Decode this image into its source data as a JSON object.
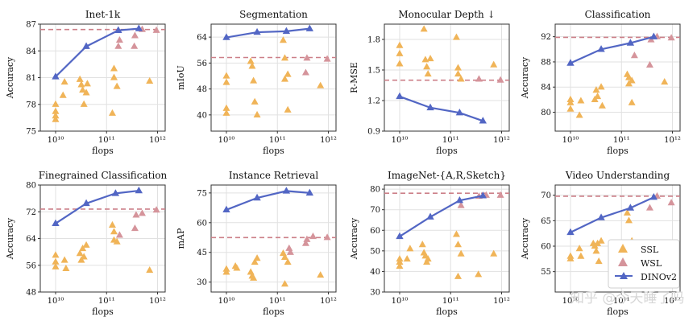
{
  "colors": {
    "ssl": "#f0b458",
    "wsl": "#d5949b",
    "dinov2": "#5266c4",
    "baseline": "#cc7f88",
    "grid": "#e1e1e1"
  },
  "legend": {
    "items": [
      {
        "label": "SSL",
        "color": "#f0b458",
        "kind": "triangle"
      },
      {
        "label": "WSL",
        "color": "#d5949b",
        "kind": "triangle"
      },
      {
        "label": "DINOv2",
        "color": "#5266c4",
        "kind": "line"
      }
    ]
  },
  "watermark": "知乎 @今天睡了吗",
  "chart_data": [
    {
      "type": "scatter",
      "title": "Inet-1k",
      "xlabel": "flops",
      "ylabel": "Accuracy",
      "xscale": "log",
      "xlim_log10": [
        9.7,
        12.15
      ],
      "ylim": [
        75,
        87
      ],
      "yticks": [
        75,
        78,
        81,
        84,
        87
      ],
      "xtick_labels": [
        "10^10",
        "10^11",
        "10^12"
      ],
      "baseline": 86.4,
      "ssl_points": [
        [
          10000000000.0,
          78.0
        ],
        [
          10000000000.0,
          77.2
        ],
        [
          10000000000.0,
          76.7
        ],
        [
          10000000000.0,
          76.3
        ],
        [
          14000000000.0,
          79.0
        ],
        [
          15000000000.0,
          80.5
        ],
        [
          30000000000.0,
          80.8
        ],
        [
          32000000000.0,
          80.2
        ],
        [
          34000000000.0,
          79.6
        ],
        [
          36000000000.0,
          78.0
        ],
        [
          40000000000.0,
          79.3
        ],
        [
          42000000000.0,
          80.3
        ],
        [
          130000000000.0,
          77.0
        ],
        [
          140000000000.0,
          82.0
        ],
        [
          140000000000.0,
          81.0
        ],
        [
          160000000000.0,
          80.0
        ],
        [
          700000000000.0,
          80.6
        ]
      ],
      "wsl_points": [
        [
          170000000000.0,
          84.5
        ],
        [
          180000000000.0,
          85.2
        ],
        [
          350000000000.0,
          84.5
        ],
        [
          360000000000.0,
          85.7
        ],
        [
          500000000000.0,
          86.4
        ],
        [
          950000000000.0,
          86.3
        ]
      ],
      "dinov2": [
        [
          10000000000.0,
          81.1
        ],
        [
          40000000000.0,
          84.5
        ],
        [
          170000000000.0,
          86.3
        ],
        [
          430000000000.0,
          86.5
        ]
      ]
    },
    {
      "type": "scatter",
      "title": "Segmentation",
      "xlabel": "flops",
      "ylabel": "mIoU",
      "xscale": "log",
      "xlim_log10": [
        9.7,
        12.15
      ],
      "ylim": [
        35,
        68
      ],
      "yticks": [
        40,
        48,
        56,
        64
      ],
      "xtick_labels": [
        "10^10",
        "10^11",
        "10^12"
      ],
      "baseline": 57.7,
      "ssl_points": [
        [
          10000000000.0,
          52.0
        ],
        [
          10000000000.0,
          50.0
        ],
        [
          10000000000.0,
          42.0
        ],
        [
          10000000000.0,
          40.5
        ],
        [
          30000000000.0,
          56.5
        ],
        [
          32000000000.0,
          55.0
        ],
        [
          34000000000.0,
          50.5
        ],
        [
          36000000000.0,
          44.0
        ],
        [
          40000000000.0,
          40.0
        ],
        [
          130000000000.0,
          63.0
        ],
        [
          140000000000.0,
          57.5
        ],
        [
          140000000000.0,
          51.0
        ],
        [
          160000000000.0,
          52.5
        ],
        [
          160000000000.0,
          41.5
        ],
        [
          700000000000.0,
          49.0
        ]
      ],
      "wsl_points": [
        [
          360000000000.0,
          53.0
        ],
        [
          380000000000.0,
          57.5
        ],
        [
          950000000000.0,
          57.2
        ]
      ],
      "dinov2": [
        [
          10000000000.0,
          63.9
        ],
        [
          40000000000.0,
          65.5
        ],
        [
          150000000000.0,
          65.8
        ],
        [
          430000000000.0,
          66.6
        ]
      ]
    },
    {
      "type": "scatter",
      "title": "Monocular Depth ↓",
      "xlabel": "flops",
      "ylabel": "R-MSE",
      "xscale": "log",
      "xlim_log10": [
        9.7,
        12.15
      ],
      "ylim": [
        0.9,
        1.95
      ],
      "yticks": [
        0.9,
        1.2,
        1.5,
        1.8
      ],
      "xtick_labels": [
        "10^10",
        "10^11",
        "10^12"
      ],
      "baseline": 1.4,
      "ssl_points": [
        [
          10000000000.0,
          1.74
        ],
        [
          10000000000.0,
          1.66
        ],
        [
          10000000000.0,
          1.56
        ],
        [
          30000000000.0,
          1.9
        ],
        [
          32000000000.0,
          1.6
        ],
        [
          34000000000.0,
          1.53
        ],
        [
          36000000000.0,
          1.46
        ],
        [
          40000000000.0,
          1.61
        ],
        [
          130000000000.0,
          1.82
        ],
        [
          140000000000.0,
          1.52
        ],
        [
          140000000000.0,
          1.46
        ],
        [
          160000000000.0,
          1.41
        ],
        [
          700000000000.0,
          1.55
        ]
      ],
      "wsl_points": [
        [
          360000000000.0,
          1.41
        ],
        [
          950000000000.0,
          1.4
        ]
      ],
      "dinov2": [
        [
          10000000000.0,
          1.24
        ],
        [
          40000000000.0,
          1.13
        ],
        [
          150000000000.0,
          1.08
        ],
        [
          430000000000.0,
          1.0
        ]
      ]
    },
    {
      "type": "scatter",
      "title": "Classification",
      "xlabel": "flops",
      "ylabel": "Accuracy",
      "xscale": "log",
      "xlim_log10": [
        9.7,
        12.15
      ],
      "ylim": [
        77,
        94
      ],
      "yticks": [
        80,
        84,
        88,
        92
      ],
      "xtick_labels": [
        "10^10",
        "10^11",
        "10^12"
      ],
      "baseline": 91.9,
      "ssl_points": [
        [
          10000000000.0,
          82.0
        ],
        [
          10000000000.0,
          81.5
        ],
        [
          10000000000.0,
          80.5
        ],
        [
          15000000000.0,
          79.5
        ],
        [
          16000000000.0,
          81.8
        ],
        [
          30000000000.0,
          82.0
        ],
        [
          32000000000.0,
          83.5
        ],
        [
          34000000000.0,
          82.5
        ],
        [
          40000000000.0,
          84.0
        ],
        [
          42000000000.0,
          81.0
        ],
        [
          130000000000.0,
          86.0
        ],
        [
          140000000000.0,
          85.5
        ],
        [
          140000000000.0,
          84.5
        ],
        [
          160000000000.0,
          85.0
        ],
        [
          160000000000.0,
          81.5
        ],
        [
          700000000000.0,
          84.8
        ]
      ],
      "wsl_points": [
        [
          180000000000.0,
          89.0
        ],
        [
          360000000000.0,
          87.5
        ],
        [
          380000000000.0,
          91.5
        ],
        [
          500000000000.0,
          92.0
        ],
        [
          950000000000.0,
          91.8
        ]
      ],
      "dinov2": [
        [
          10000000000.0,
          87.8
        ],
        [
          40000000000.0,
          90.0
        ],
        [
          150000000000.0,
          91.0
        ],
        [
          430000000000.0,
          92.0
        ]
      ]
    },
    {
      "type": "scatter",
      "title": "Finegrained Classification",
      "xlabel": "flops",
      "ylabel": "Accuracy",
      "xscale": "log",
      "xlim_log10": [
        9.7,
        12.15
      ],
      "ylim": [
        48,
        80
      ],
      "yticks": [
        48,
        56,
        64,
        72,
        80
      ],
      "xtick_labels": [
        "10^10",
        "10^11",
        "10^12"
      ],
      "baseline": 72.8,
      "ssl_points": [
        [
          10000000000.0,
          59.0
        ],
        [
          10000000000.0,
          57.0
        ],
        [
          10000000000.0,
          55.5
        ],
        [
          15000000000.0,
          57.5
        ],
        [
          16000000000.0,
          55.0
        ],
        [
          30000000000.0,
          59.5
        ],
        [
          32000000000.0,
          57.5
        ],
        [
          34000000000.0,
          61.0
        ],
        [
          36000000000.0,
          58.5
        ],
        [
          40000000000.0,
          62.0
        ],
        [
          130000000000.0,
          68.0
        ],
        [
          140000000000.0,
          66.0
        ],
        [
          140000000000.0,
          63.5
        ],
        [
          160000000000.0,
          63.0
        ],
        [
          700000000000.0,
          54.5
        ]
      ],
      "wsl_points": [
        [
          180000000000.0,
          65.0
        ],
        [
          360000000000.0,
          67.0
        ],
        [
          380000000000.0,
          71.0
        ],
        [
          500000000000.0,
          71.5
        ],
        [
          950000000000.0,
          72.5
        ]
      ],
      "dinov2": [
        [
          10000000000.0,
          68.5
        ],
        [
          40000000000.0,
          74.5
        ],
        [
          150000000000.0,
          77.5
        ],
        [
          430000000000.0,
          78.3
        ]
      ]
    },
    {
      "type": "scatter",
      "title": "Instance Retrieval",
      "xlabel": "flops",
      "ylabel": "mAP",
      "xscale": "log",
      "xlim_log10": [
        9.7,
        12.15
      ],
      "ylim": [
        25,
        79
      ],
      "yticks": [
        30,
        45,
        60,
        75
      ],
      "xtick_labels": [
        "10^10",
        "10^11",
        "10^12"
      ],
      "baseline": 52.5,
      "ssl_points": [
        [
          10000000000.0,
          36.5
        ],
        [
          10000000000.0,
          35.0
        ],
        [
          15000000000.0,
          38.0
        ],
        [
          16000000000.0,
          37.0
        ],
        [
          30000000000.0,
          35.0
        ],
        [
          32000000000.0,
          33.0
        ],
        [
          34000000000.0,
          32.0
        ],
        [
          36000000000.0,
          40.0
        ],
        [
          40000000000.0,
          42.0
        ],
        [
          130000000000.0,
          44.5
        ],
        [
          140000000000.0,
          42.5
        ],
        [
          140000000000.0,
          29.0
        ],
        [
          160000000000.0,
          40.0
        ],
        [
          700000000000.0,
          33.5
        ]
      ],
      "wsl_points": [
        [
          170000000000.0,
          47.0
        ],
        [
          180000000000.0,
          45.0
        ],
        [
          360000000000.0,
          49.5
        ],
        [
          380000000000.0,
          51.5
        ],
        [
          500000000000.0,
          53.0
        ],
        [
          950000000000.0,
          52.5
        ]
      ],
      "dinov2": [
        [
          10000000000.0,
          66.5
        ],
        [
          40000000000.0,
          72.5
        ],
        [
          150000000000.0,
          76.0
        ],
        [
          430000000000.0,
          75.0
        ]
      ]
    },
    {
      "type": "scatter",
      "title": "ImageNet-{A,R,Sketch}",
      "xlabel": "flops",
      "ylabel": "Accuracy",
      "xscale": "log",
      "xlim_log10": [
        9.7,
        12.15
      ],
      "ylim": [
        30,
        82
      ],
      "yticks": [
        30,
        40,
        50,
        60,
        70,
        80
      ],
      "xtick_labels": [
        "10^10",
        "10^11",
        "10^12"
      ],
      "baseline": 78.0,
      "ssl_points": [
        [
          10000000000.0,
          46.0
        ],
        [
          10000000000.0,
          44.5
        ],
        [
          10000000000.0,
          42.5
        ],
        [
          14000000000.0,
          46.0
        ],
        [
          16000000000.0,
          51.0
        ],
        [
          28000000000.0,
          53.0
        ],
        [
          30000000000.0,
          49.0
        ],
        [
          32000000000.0,
          47.5
        ],
        [
          34000000000.0,
          44.5
        ],
        [
          36000000000.0,
          46.0
        ],
        [
          130000000000.0,
          58.0
        ],
        [
          140000000000.0,
          53.0
        ],
        [
          140000000000.0,
          37.5
        ],
        [
          160000000000.0,
          48.5
        ],
        [
          350000000000.0,
          38.5
        ],
        [
          700000000000.0,
          48.5
        ]
      ],
      "wsl_points": [
        [
          160000000000.0,
          72.0
        ],
        [
          360000000000.0,
          76.5
        ],
        [
          500000000000.0,
          77.0
        ],
        [
          950000000000.0,
          77.0
        ]
      ],
      "dinov2": [
        [
          10000000000.0,
          57.0
        ],
        [
          40000000000.0,
          66.5
        ],
        [
          150000000000.0,
          74.5
        ],
        [
          430000000000.0,
          76.8
        ]
      ]
    },
    {
      "type": "scatter",
      "title": "Video Understanding",
      "xlabel": "flops",
      "ylabel": "Accuracy",
      "xscale": "log",
      "xlim_log10": [
        9.7,
        12.15
      ],
      "ylim": [
        51,
        72
      ],
      "yticks": [
        55,
        60,
        65,
        70
      ],
      "xtick_labels": [
        "10^10",
        "10^11",
        "10^12"
      ],
      "baseline": 69.8,
      "ssl_points": [
        [
          10000000000.0,
          58.0
        ],
        [
          10000000000.0,
          57.5
        ],
        [
          15000000000.0,
          59.5
        ],
        [
          16000000000.0,
          58.0
        ],
        [
          28000000000.0,
          60.5
        ],
        [
          30000000000.0,
          60.0
        ],
        [
          32000000000.0,
          59.0
        ],
        [
          34000000000.0,
          60.5
        ],
        [
          36000000000.0,
          57.0
        ],
        [
          40000000000.0,
          61.0
        ],
        [
          130000000000.0,
          66.5
        ],
        [
          140000000000.0,
          65.0
        ],
        [
          140000000000.0,
          60.5
        ],
        [
          160000000000.0,
          61.0
        ],
        [
          160000000000.0,
          56.0
        ],
        [
          700000000000.0,
          59.0
        ]
      ],
      "wsl_points": [
        [
          360000000000.0,
          67.5
        ],
        [
          500000000000.0,
          69.8
        ],
        [
          950000000000.0,
          68.5
        ]
      ],
      "dinov2": [
        [
          10000000000.0,
          62.7
        ],
        [
          40000000000.0,
          65.6
        ],
        [
          150000000000.0,
          67.5
        ],
        [
          430000000000.0,
          69.6
        ]
      ]
    }
  ]
}
